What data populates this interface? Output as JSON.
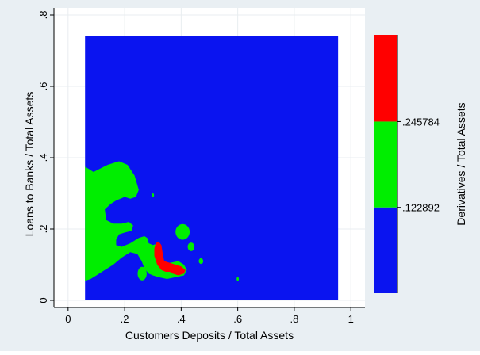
{
  "chart_data": {
    "type": "heatmap",
    "title": "",
    "xlabel": "Customers Deposits / Total Assets",
    "ylabel": "Loans to Banks / Total Assets",
    "zlabel": "Derivatives / Total Assets",
    "xlim": [
      -0.05,
      1.05
    ],
    "ylim": [
      -0.02,
      0.82
    ],
    "x_ticks": [
      {
        "value": 0,
        "label": "0"
      },
      {
        "value": 0.2,
        "label": ".2"
      },
      {
        "value": 0.4,
        "label": ".4"
      },
      {
        "value": 0.6,
        "label": ".6"
      },
      {
        "value": 0.8,
        "label": ".8"
      },
      {
        "value": 1.0,
        "label": "1"
      }
    ],
    "y_ticks": [
      {
        "value": 0,
        "label": "0"
      },
      {
        "value": 0.2,
        "label": ".2"
      },
      {
        "value": 0.4,
        "label": ".4"
      },
      {
        "value": 0.6,
        "label": ".6"
      },
      {
        "value": 0.8,
        "label": ".8"
      }
    ],
    "grid": true,
    "legend_placement": "right",
    "data_extent": {
      "x": [
        0.06,
        0.955
      ],
      "y": [
        0.0,
        0.74
      ]
    },
    "color_bins": [
      {
        "range": [
          0,
          0.122892
        ],
        "color": "#0a14f0"
      },
      {
        "range": [
          0.122892,
          0.245784
        ],
        "color": "#00ee00"
      },
      {
        "range": [
          0.245784,
          0.37
        ],
        "color": "#ff0000"
      }
    ],
    "colorbar_ticks": [
      {
        "value": 0.122892,
        "label": ".122892"
      },
      {
        "value": 0.245784,
        "label": ".245784"
      }
    ],
    "regions": [
      {
        "bin": 1,
        "polygon": [
          [
            0.06,
            0.375
          ],
          [
            0.09,
            0.36
          ],
          [
            0.14,
            0.38
          ],
          [
            0.18,
            0.39
          ],
          [
            0.21,
            0.38
          ],
          [
            0.235,
            0.35
          ],
          [
            0.25,
            0.31
          ],
          [
            0.24,
            0.29
          ],
          [
            0.22,
            0.285
          ],
          [
            0.2,
            0.29
          ],
          [
            0.17,
            0.28
          ],
          [
            0.15,
            0.27
          ],
          [
            0.13,
            0.255
          ],
          [
            0.135,
            0.225
          ],
          [
            0.16,
            0.215
          ],
          [
            0.19,
            0.215
          ],
          [
            0.215,
            0.22
          ],
          [
            0.23,
            0.21
          ],
          [
            0.225,
            0.195
          ],
          [
            0.2,
            0.19
          ],
          [
            0.18,
            0.185
          ],
          [
            0.17,
            0.17
          ],
          [
            0.17,
            0.155
          ],
          [
            0.19,
            0.15
          ],
          [
            0.22,
            0.16
          ],
          [
            0.25,
            0.175
          ],
          [
            0.27,
            0.18
          ],
          [
            0.28,
            0.175
          ],
          [
            0.285,
            0.16
          ],
          [
            0.3,
            0.155
          ],
          [
            0.32,
            0.16
          ],
          [
            0.33,
            0.15
          ],
          [
            0.335,
            0.125
          ],
          [
            0.34,
            0.105
          ],
          [
            0.36,
            0.105
          ],
          [
            0.39,
            0.11
          ],
          [
            0.41,
            0.1
          ],
          [
            0.42,
            0.085
          ],
          [
            0.41,
            0.07
          ],
          [
            0.38,
            0.065
          ],
          [
            0.35,
            0.06
          ],
          [
            0.32,
            0.065
          ],
          [
            0.3,
            0.07
          ],
          [
            0.285,
            0.075
          ],
          [
            0.27,
            0.09
          ],
          [
            0.26,
            0.11
          ],
          [
            0.245,
            0.13
          ],
          [
            0.22,
            0.135
          ],
          [
            0.19,
            0.12
          ],
          [
            0.16,
            0.1
          ],
          [
            0.13,
            0.085
          ],
          [
            0.1,
            0.07
          ],
          [
            0.08,
            0.06
          ],
          [
            0.06,
            0.055
          ]
        ]
      },
      {
        "bin": 1,
        "ellipse": {
          "cx": 0.262,
          "cy": 0.075,
          "rx": 0.016,
          "ry": 0.019
        }
      },
      {
        "bin": 1,
        "ellipse": {
          "cx": 0.405,
          "cy": 0.192,
          "rx": 0.025,
          "ry": 0.022
        }
      },
      {
        "bin": 1,
        "ellipse": {
          "cx": 0.435,
          "cy": 0.15,
          "rx": 0.012,
          "ry": 0.012
        }
      },
      {
        "bin": 1,
        "ellipse": {
          "cx": 0.47,
          "cy": 0.11,
          "rx": 0.008,
          "ry": 0.008
        }
      },
      {
        "bin": 1,
        "ellipse": {
          "cx": 0.3,
          "cy": 0.295,
          "rx": 0.004,
          "ry": 0.005
        }
      },
      {
        "bin": 1,
        "ellipse": {
          "cx": 0.6,
          "cy": 0.06,
          "rx": 0.004,
          "ry": 0.005
        }
      },
      {
        "bin": 2,
        "polygon": [
          [
            0.31,
            0.16
          ],
          [
            0.32,
            0.165
          ],
          [
            0.33,
            0.155
          ],
          [
            0.335,
            0.13
          ],
          [
            0.34,
            0.11
          ],
          [
            0.36,
            0.105
          ],
          [
            0.38,
            0.1
          ],
          [
            0.4,
            0.095
          ],
          [
            0.415,
            0.085
          ],
          [
            0.41,
            0.075
          ],
          [
            0.39,
            0.07
          ],
          [
            0.37,
            0.075
          ],
          [
            0.36,
            0.08
          ],
          [
            0.345,
            0.08
          ],
          [
            0.33,
            0.085
          ],
          [
            0.315,
            0.1
          ],
          [
            0.305,
            0.125
          ],
          [
            0.305,
            0.145
          ]
        ]
      }
    ]
  }
}
